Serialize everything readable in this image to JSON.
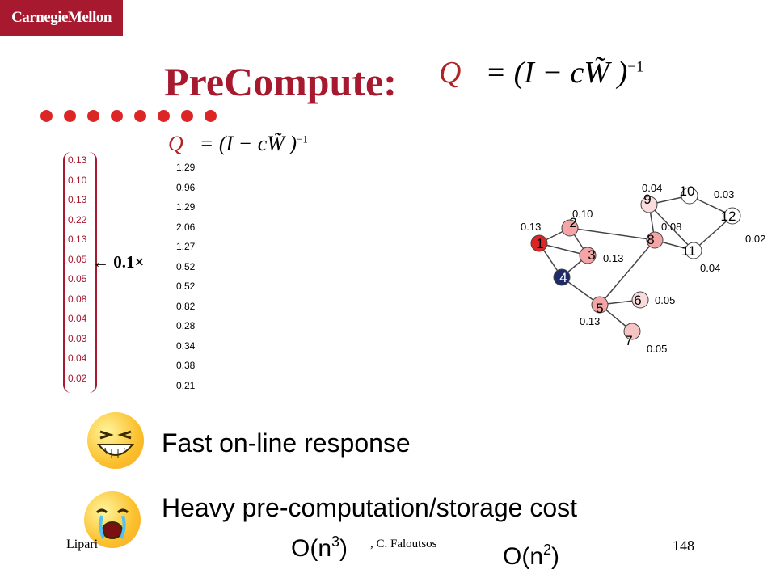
{
  "header": {
    "logo_text": "CarnegieMellon",
    "title": "PreCompute:"
  },
  "formula_main": {
    "lhs": "Q",
    "rhs": "= (I − cW̃ )",
    "exp": "−1"
  },
  "formula_small": {
    "lhs": "Q",
    "rhs": "= (I − cW̃ )",
    "exp": "−1"
  },
  "arrow_label": "← 0.1×",
  "vector_q": [
    "0.13",
    "0.10",
    "0.13",
    "0.22",
    "0.13",
    "0.05",
    "0.05",
    "0.08",
    "0.04",
    "0.03",
    "0.04",
    "0.02"
  ],
  "vector_r": [
    "1.29",
    "0.96",
    "1.29",
    "2.06",
    "1.27",
    "0.52",
    "0.52",
    "0.82",
    "0.28",
    "0.34",
    "0.38",
    "0.21"
  ],
  "graph": {
    "nodes": [
      "1",
      "2",
      "3",
      "4",
      "5",
      "6",
      "7",
      "8",
      "9",
      "10",
      "11",
      "12"
    ],
    "edge_labels": [
      "0.13",
      "0.10",
      "0.13",
      "0.04",
      "0.08",
      "0.03",
      "0.02",
      "0.04",
      "0.05",
      "0.13",
      "0.05"
    ]
  },
  "bullets": [
    {
      "text": "Fast on-line response",
      "face": "laughing-face-icon"
    },
    {
      "text": "Heavy pre-computation/storage cost",
      "face": "crying-face-icon"
    }
  ],
  "complexity": {
    "first_base": "O(n",
    "first_exp": "3",
    "first_close": ")",
    "second_base": "O(n",
    "second_exp": "2",
    "second_close": ")"
  },
  "footer": {
    "left": "Lipari",
    "middle": ", C. Faloutsos",
    "page_number": "148"
  },
  "colors": {
    "brand": "#a6192e",
    "dot": "#dc2626"
  }
}
